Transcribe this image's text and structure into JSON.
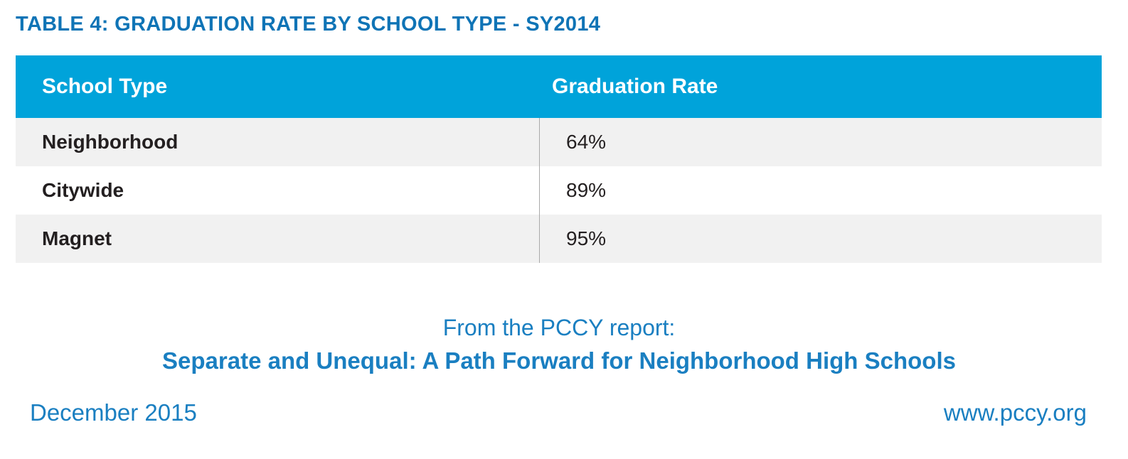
{
  "title": "TABLE 4: GRADUATION RATE BY SCHOOL TYPE - SY2014",
  "table": {
    "headers": [
      "School Type",
      "Graduation Rate"
    ],
    "rows": [
      {
        "school_type": "Neighborhood",
        "graduation_rate": "64%"
      },
      {
        "school_type": "Citywide",
        "graduation_rate": "89%"
      },
      {
        "school_type": "Magnet",
        "graduation_rate": "95%"
      }
    ]
  },
  "source": {
    "prefix": "From the PCCY report:",
    "report_title": "Separate and Unequal: A Path Forward for Neighborhood High Schools"
  },
  "footer": {
    "date": "December 2015",
    "url": "www.pccy.org"
  },
  "colors": {
    "header_background": "#00a3da",
    "title_text": "#0f74b6",
    "source_text": "#1a7fc1",
    "shaded_row": "#f1f1f1"
  }
}
